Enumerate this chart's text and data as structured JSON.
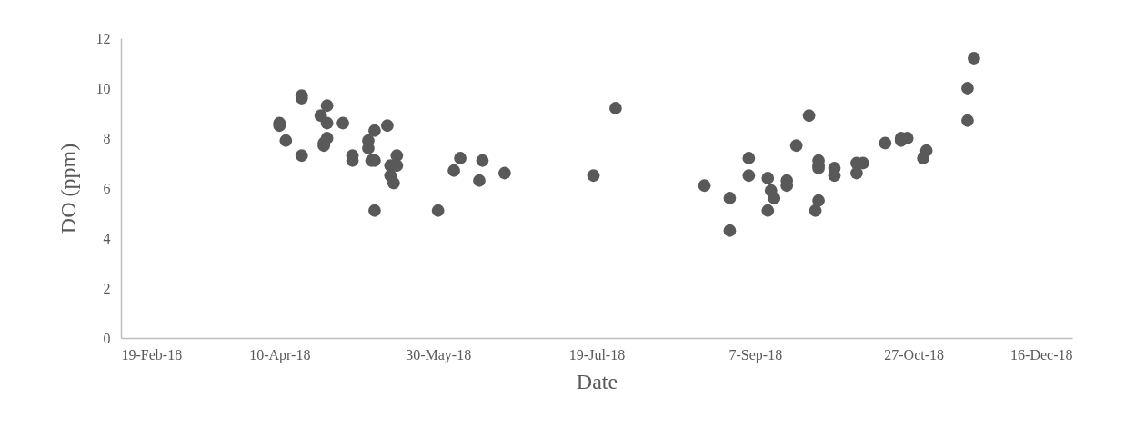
{
  "chart_data": {
    "type": "scatter",
    "xlabel": "Date",
    "ylabel": "DO (ppm)",
    "x": [
      "2018-04-10",
      "2018-04-10",
      "2018-04-12",
      "2018-04-17",
      "2018-04-17",
      "2018-04-17",
      "2018-04-23",
      "2018-04-24",
      "2018-04-24",
      "2018-04-25",
      "2018-04-25",
      "2018-04-25",
      "2018-04-30",
      "2018-05-03",
      "2018-05-03",
      "2018-05-08",
      "2018-05-08",
      "2018-05-09",
      "2018-05-10",
      "2018-05-10",
      "2018-05-10",
      "2018-05-14",
      "2018-05-15",
      "2018-05-15",
      "2018-05-16",
      "2018-05-17",
      "2018-05-17",
      "2018-05-30",
      "2018-06-04",
      "2018-06-06",
      "2018-06-12",
      "2018-06-13",
      "2018-06-20",
      "2018-07-18",
      "2018-07-25",
      "2018-08-22",
      "2018-08-30",
      "2018-08-30",
      "2018-09-05",
      "2018-09-05",
      "2018-09-11",
      "2018-09-11",
      "2018-09-12",
      "2018-09-13",
      "2018-09-17",
      "2018-09-17",
      "2018-09-20",
      "2018-09-24",
      "2018-09-26",
      "2018-09-27",
      "2018-09-27",
      "2018-09-27",
      "2018-09-27",
      "2018-10-02",
      "2018-10-02",
      "2018-10-09",
      "2018-10-09",
      "2018-10-11",
      "2018-10-18",
      "2018-10-23",
      "2018-10-23",
      "2018-10-25",
      "2018-10-30",
      "2018-10-31",
      "2018-11-13",
      "2018-11-13",
      "2018-11-15"
    ],
    "series": [
      {
        "color": "#595959",
        "values": [
          8.6,
          8.5,
          7.9,
          9.7,
          9.6,
          7.3,
          8.9,
          7.7,
          7.8,
          9.3,
          8.6,
          8.0,
          8.6,
          7.3,
          7.1,
          7.9,
          7.6,
          7.1,
          7.1,
          8.3,
          5.1,
          8.5,
          6.9,
          6.5,
          6.2,
          7.3,
          6.9,
          5.1,
          6.7,
          7.2,
          6.3,
          7.1,
          6.6,
          6.5,
          9.2,
          6.1,
          5.6,
          4.3,
          7.2,
          6.5,
          6.4,
          5.1,
          5.9,
          5.6,
          6.3,
          6.1,
          7.7,
          8.9,
          5.1,
          7.1,
          6.9,
          6.8,
          5.5,
          6.8,
          6.5,
          7.0,
          6.6,
          7.0,
          7.8,
          7.9,
          8.0,
          8.0,
          7.2,
          7.5,
          8.7,
          10.0,
          11.2
        ]
      }
    ],
    "xlim": [
      "2018-02-19",
      "2018-12-16"
    ],
    "xticks": [
      {
        "value": "2018-02-19",
        "label": "19-Feb-18"
      },
      {
        "value": "2018-04-10",
        "label": "10-Apr-18"
      },
      {
        "value": "2018-05-30",
        "label": "30-May-18"
      },
      {
        "value": "2018-07-19",
        "label": "19-Jul-18"
      },
      {
        "value": "2018-09-07",
        "label": "7-Sep-18"
      },
      {
        "value": "2018-10-27",
        "label": "27-Oct-18"
      },
      {
        "value": "2018-12-16",
        "label": "16-Dec-18"
      }
    ],
    "ylim": [
      0,
      12
    ],
    "yticks": [
      0,
      2,
      4,
      6,
      8,
      10,
      12
    ],
    "grid": false,
    "marker": "circle"
  }
}
